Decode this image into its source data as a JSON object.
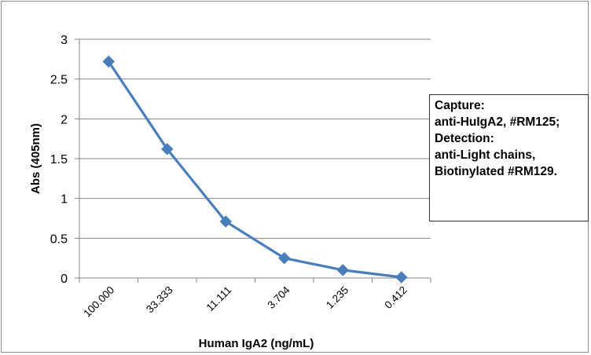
{
  "chart_data": {
    "type": "line",
    "categories": [
      "100.000",
      "33.333",
      "11.111",
      "3.704",
      "1.235",
      "0.412"
    ],
    "series": [
      {
        "values": [
          2.72,
          1.62,
          0.71,
          0.25,
          0.1,
          0.01
        ]
      }
    ],
    "xlabel": "Human IgA2 (ng/mL)",
    "ylabel": "Abs (405nm)",
    "ylim": [
      0,
      3
    ],
    "yticks": [
      "0",
      "0.5",
      "1",
      "1.5",
      "2",
      "2.5",
      "3"
    ],
    "grid": true,
    "legend_position": "right",
    "colors": {
      "series": "#4a7ebb",
      "grid": "#868686",
      "axis": "#868686"
    }
  },
  "annotation": {
    "lines": [
      "Capture:",
      "anti-HuIgA2, #RM125;",
      "Detection:",
      "anti-Light chains,",
      "Biotinylated #RM129."
    ]
  }
}
